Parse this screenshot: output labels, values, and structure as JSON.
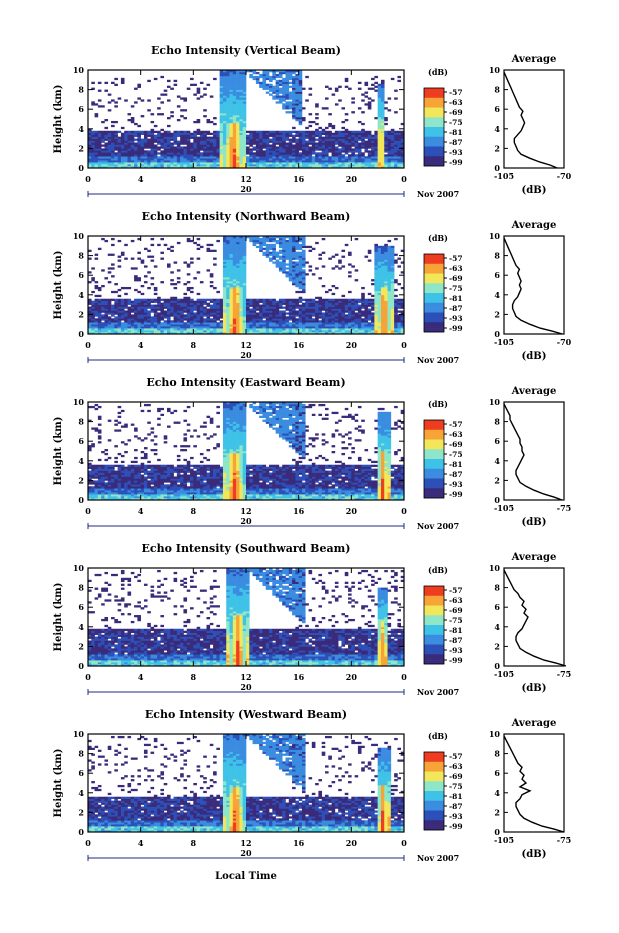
{
  "figure": {
    "xlabel": "Local Time",
    "date_label": "Nov 2007",
    "day_label": "20",
    "colorbar_unit": "(dB)",
    "colorbar_ticks": [
      "-57",
      "-63",
      "-69",
      "-75",
      "-81",
      "-87",
      "-93",
      "-99"
    ],
    "colormap": [
      "#3a2a7a",
      "#2c4fb8",
      "#3a8ce0",
      "#3fc2e8",
      "#8ee6c8",
      "#f2e65a",
      "#f7a335",
      "#ee3d20"
    ]
  },
  "chart_data": [
    {
      "type": "heatmap",
      "title": "Echo Intensity (Vertical Beam)",
      "ylabel": "Height (km)",
      "xlabel": "Local Time",
      "x_ticks": [
        "0",
        "4",
        "8",
        "12",
        "16",
        "20",
        "0"
      ],
      "y_ticks": [
        "0",
        "2",
        "4",
        "6",
        "8",
        "10"
      ],
      "xlim": [
        0,
        24
      ],
      "ylim": [
        0,
        10
      ],
      "clim": [
        -99,
        -57
      ],
      "features": {
        "background_layer_top_km": 3.8,
        "sparse_echo_top_km": 9.5,
        "convective_events": [
          {
            "start_h": 10.3,
            "end_h": 11.8,
            "core_top_km": 4.6,
            "anvil_top_km": 10
          },
          {
            "start_h": 22.0,
            "end_h": 22.5,
            "core_top_km": 5.0,
            "anvil_top_km": 8.5
          }
        ],
        "near_surface_max_km": 0.6
      },
      "profile": {
        "title": "Average",
        "xlabel": "(dB)",
        "x_ticks": [
          "-105",
          "-70"
        ],
        "xlim": [
          -105,
          -70
        ],
        "ylim": [
          0,
          10
        ],
        "height_km": [
          0,
          0.3,
          0.6,
          1.0,
          1.4,
          1.8,
          2.2,
          2.6,
          3.0,
          3.4,
          3.8,
          4.2,
          4.6,
          5.0,
          5.4,
          5.8,
          6.2,
          6.6,
          7.0,
          7.4,
          7.8,
          8.2,
          8.6,
          9.0,
          9.4,
          9.8
        ],
        "db": [
          -74,
          -78,
          -84,
          -90,
          -95,
          -97,
          -98,
          -99,
          -99,
          -97,
          -95,
          -94,
          -93,
          -94,
          -95,
          -94,
          -96,
          -97,
          -98,
          -99,
          -100,
          -101,
          -102,
          -103,
          -104,
          -105
        ]
      }
    },
    {
      "type": "heatmap",
      "title": "Echo Intensity (Northward Beam)",
      "ylabel": "Height (km)",
      "xlabel": "Local Time",
      "x_ticks": [
        "0",
        "4",
        "8",
        "12",
        "16",
        "20",
        "0"
      ],
      "y_ticks": [
        "0",
        "2",
        "4",
        "6",
        "8",
        "10"
      ],
      "xlim": [
        0,
        24
      ],
      "ylim": [
        0,
        10
      ],
      "clim": [
        -99,
        -57
      ],
      "features": {
        "background_layer_top_km": 3.6,
        "sparse_echo_top_km": 9.8,
        "convective_events": [
          {
            "start_h": 10.5,
            "end_h": 11.9,
            "core_top_km": 4.8,
            "anvil_top_km": 10
          },
          {
            "start_h": 22.0,
            "end_h": 23.0,
            "core_top_km": 4.8,
            "anvil_top_km": 9.0
          }
        ],
        "near_surface_max_km": 0.6
      },
      "profile": {
        "title": "Average",
        "xlabel": "(dB)",
        "x_ticks": [
          "-105",
          "-70"
        ],
        "xlim": [
          -105,
          -70
        ],
        "ylim": [
          0,
          10
        ],
        "height_km": [
          0,
          0.3,
          0.6,
          1.0,
          1.4,
          1.8,
          2.2,
          2.6,
          3.0,
          3.4,
          3.8,
          4.2,
          4.6,
          5.0,
          5.4,
          5.8,
          6.2,
          6.6,
          7.0,
          7.4,
          7.8,
          8.2,
          8.6,
          9.0,
          9.4,
          9.8
        ],
        "db": [
          -71,
          -77,
          -84,
          -90,
          -95,
          -98,
          -99,
          -100,
          -100,
          -99,
          -97,
          -96,
          -95,
          -96,
          -95,
          -96,
          -97,
          -96,
          -98,
          -99,
          -100,
          -101,
          -102,
          -103,
          -104,
          -105
        ]
      }
    },
    {
      "type": "heatmap",
      "title": "Echo Intensity (Eastward Beam)",
      "ylabel": "Height (km)",
      "xlabel": "Local Time",
      "x_ticks": [
        "0",
        "4",
        "8",
        "12",
        "16",
        "20",
        "0"
      ],
      "y_ticks": [
        "0",
        "2",
        "4",
        "6",
        "8",
        "10"
      ],
      "xlim": [
        0,
        24
      ],
      "ylim": [
        0,
        10
      ],
      "clim": [
        -99,
        -57
      ],
      "features": {
        "background_layer_top_km": 3.7,
        "sparse_echo_top_km": 9.8,
        "convective_events": [
          {
            "start_h": 10.4,
            "end_h": 11.9,
            "core_top_km": 4.8,
            "anvil_top_km": 10
          },
          {
            "start_h": 22.0,
            "end_h": 22.8,
            "core_top_km": 5.0,
            "anvil_top_km": 9.0
          }
        ],
        "near_surface_max_km": 0.6
      },
      "profile": {
        "title": "Average",
        "xlabel": "(dB)",
        "x_ticks": [
          "-105",
          "-75"
        ],
        "xlim": [
          -105,
          -75
        ],
        "ylim": [
          0,
          10
        ],
        "height_km": [
          0,
          0.3,
          0.6,
          1.0,
          1.4,
          1.8,
          2.2,
          2.6,
          3.0,
          3.4,
          3.8,
          4.2,
          4.6,
          5.0,
          5.4,
          5.8,
          6.2,
          6.6,
          7.0,
          7.4,
          7.8,
          8.2,
          8.6,
          9.0,
          9.4,
          9.8
        ],
        "db": [
          -76,
          -80,
          -85,
          -90,
          -94,
          -97,
          -98,
          -99,
          -99,
          -98,
          -97,
          -96,
          -95,
          -96,
          -96,
          -97,
          -97,
          -98,
          -99,
          -100,
          -101,
          -102,
          -102,
          -103,
          -104,
          -105
        ]
      }
    },
    {
      "type": "heatmap",
      "title": "Echo Intensity (Southward Beam)",
      "ylabel": "Height (km)",
      "xlabel": "Local Time",
      "x_ticks": [
        "0",
        "4",
        "8",
        "12",
        "16",
        "20",
        "0"
      ],
      "y_ticks": [
        "0",
        "2",
        "4",
        "6",
        "8",
        "10"
      ],
      "xlim": [
        0,
        24
      ],
      "ylim": [
        0,
        10
      ],
      "clim": [
        -99,
        -57
      ],
      "features": {
        "background_layer_top_km": 3.8,
        "sparse_echo_top_km": 9.8,
        "convective_events": [
          {
            "start_h": 10.8,
            "end_h": 12.0,
            "core_top_km": 5.2,
            "anvil_top_km": 10
          },
          {
            "start_h": 22.0,
            "end_h": 22.6,
            "core_top_km": 4.6,
            "anvil_top_km": 8.0
          }
        ],
        "near_surface_max_km": 0.7
      },
      "profile": {
        "title": "Average",
        "xlabel": "(dB)",
        "x_ticks": [
          "-105",
          "-75"
        ],
        "xlim": [
          -105,
          -75
        ],
        "ylim": [
          0,
          10
        ],
        "height_km": [
          0,
          0.3,
          0.6,
          1.0,
          1.4,
          1.8,
          2.2,
          2.6,
          3.0,
          3.4,
          3.8,
          4.2,
          4.6,
          5.0,
          5.4,
          5.8,
          6.2,
          6.6,
          7.0,
          7.4,
          7.8,
          8.2,
          8.6,
          9.0,
          9.4,
          9.8
        ],
        "db": [
          -74,
          -79,
          -85,
          -90,
          -94,
          -97,
          -98,
          -99,
          -99,
          -98,
          -96,
          -95,
          -94,
          -93,
          -95,
          -94,
          -96,
          -95,
          -97,
          -98,
          -100,
          -101,
          -102,
          -103,
          -104,
          -105
        ]
      }
    },
    {
      "type": "heatmap",
      "title": "Echo Intensity (Westward Beam)",
      "ylabel": "Height (km)",
      "xlabel": "Local Time",
      "x_ticks": [
        "0",
        "4",
        "8",
        "12",
        "16",
        "20",
        "0"
      ],
      "y_ticks": [
        "0",
        "2",
        "4",
        "6",
        "8",
        "10"
      ],
      "xlim": [
        0,
        24
      ],
      "ylim": [
        0,
        10
      ],
      "clim": [
        -99,
        -57
      ],
      "features": {
        "background_layer_top_km": 3.6,
        "sparse_echo_top_km": 9.8,
        "convective_events": [
          {
            "start_h": 10.5,
            "end_h": 11.9,
            "core_top_km": 4.6,
            "anvil_top_km": 10
          },
          {
            "start_h": 22.0,
            "end_h": 22.8,
            "core_top_km": 4.8,
            "anvil_top_km": 8.5
          }
        ],
        "near_surface_max_km": 0.6
      },
      "profile": {
        "title": "Average",
        "xlabel": "(dB)",
        "x_ticks": [
          "-105",
          "-75"
        ],
        "xlim": [
          -105,
          -75
        ],
        "ylim": [
          0,
          10
        ],
        "height_km": [
          0,
          0.3,
          0.6,
          1.0,
          1.4,
          1.8,
          2.2,
          2.6,
          3.0,
          3.4,
          3.8,
          4.2,
          4.6,
          5.0,
          5.4,
          5.8,
          6.2,
          6.6,
          7.0,
          7.4,
          7.8,
          8.2,
          8.6,
          9.0,
          9.4,
          9.8
        ],
        "db": [
          -75,
          -80,
          -86,
          -91,
          -95,
          -97,
          -98,
          -99,
          -99,
          -97,
          -96,
          -92,
          -97,
          -94,
          -96,
          -95,
          -97,
          -96,
          -98,
          -99,
          -100,
          -101,
          -102,
          -103,
          -104,
          -105
        ]
      }
    }
  ]
}
